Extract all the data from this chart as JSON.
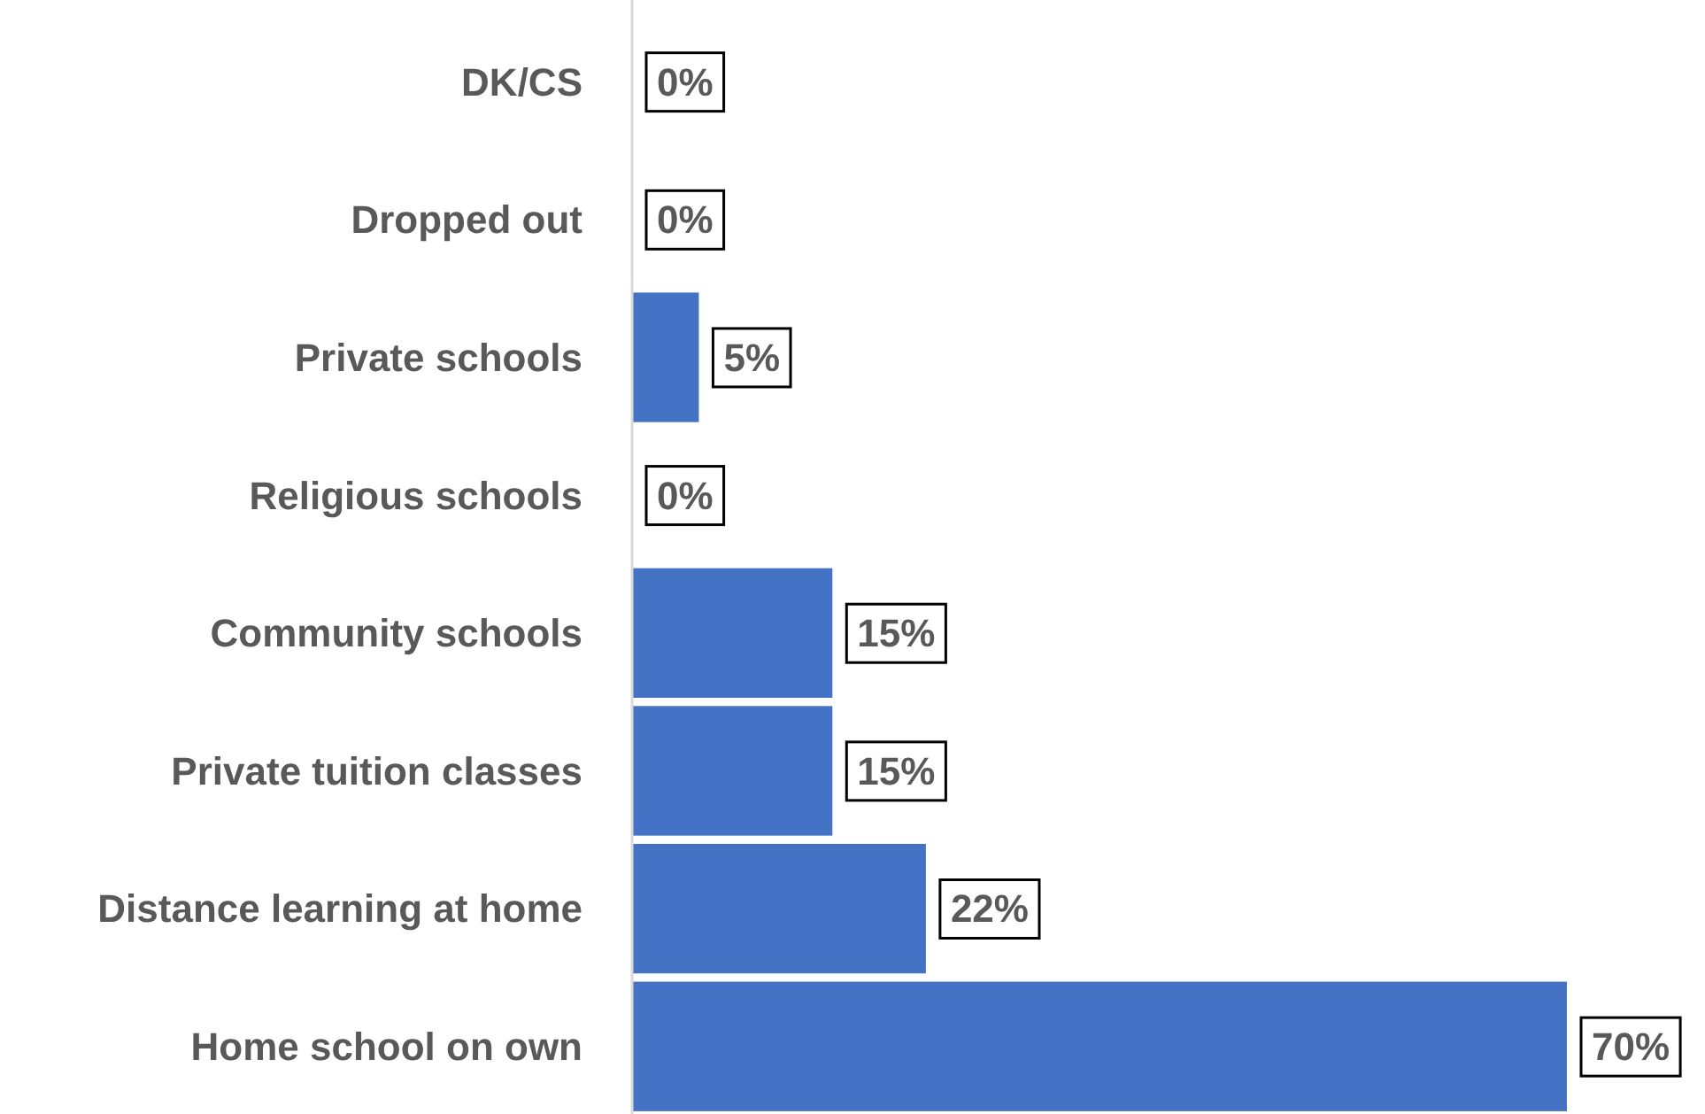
{
  "chart_data": {
    "type": "bar",
    "orientation": "horizontal",
    "categories": [
      "DK/CS",
      "Dropped out",
      "Private schools",
      "Religious schools",
      "Community schools",
      "Private tuition classes",
      "Distance learning at home",
      "Home school on own"
    ],
    "values": [
      0,
      0,
      5,
      0,
      15,
      15,
      22,
      70
    ],
    "color": "#4472c4",
    "data_labels": true,
    "value_labels": [
      "0%",
      "0%",
      "5%",
      "0%",
      "15%",
      "15%",
      "22%",
      "70%"
    ]
  }
}
